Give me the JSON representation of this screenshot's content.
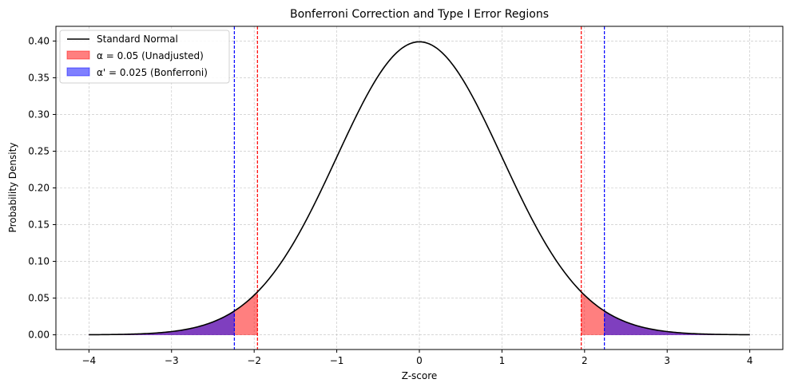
{
  "chart_data": {
    "type": "area",
    "title": "Bonferroni Correction and Type I Error Regions",
    "xlabel": "Z-score",
    "ylabel": "Probability Density",
    "xlim": [
      -4.4,
      4.4
    ],
    "ylim": [
      -0.02,
      0.42
    ],
    "xticks": [
      -4,
      -3,
      -2,
      -1,
      0,
      1,
      2,
      3,
      4
    ],
    "xtick_labels": [
      "−4",
      "−3",
      "−2",
      "−1",
      "0",
      "1",
      "2",
      "3",
      "4"
    ],
    "yticks": [
      0.0,
      0.05,
      0.1,
      0.15,
      0.2,
      0.25,
      0.3,
      0.35,
      0.4
    ],
    "ytick_labels": [
      "0.00",
      "0.05",
      "0.10",
      "0.15",
      "0.20",
      "0.25",
      "0.30",
      "0.35",
      "0.40"
    ],
    "grid": true,
    "legend_position": "top-left",
    "curve": {
      "name": "Standard Normal",
      "distribution": "standard normal pdf",
      "x_range": [
        -4,
        4
      ],
      "color": "#000000"
    },
    "regions": [
      {
        "name": "α = 0.05 (Unadjusted)",
        "alpha": 0.05,
        "critical_z": 1.96,
        "color": "#ff0000",
        "opacity": 0.5
      },
      {
        "name": "α' = 0.025 (Bonferroni)",
        "alpha": 0.025,
        "critical_z": 2.24,
        "color": "#0000ff",
        "opacity": 0.5
      }
    ],
    "critical_lines": [
      {
        "z": -1.96,
        "color": "#ff0000"
      },
      {
        "z": 1.96,
        "color": "#ff0000"
      },
      {
        "z": -2.24,
        "color": "#0000ff"
      },
      {
        "z": 2.24,
        "color": "#0000ff"
      }
    ]
  }
}
